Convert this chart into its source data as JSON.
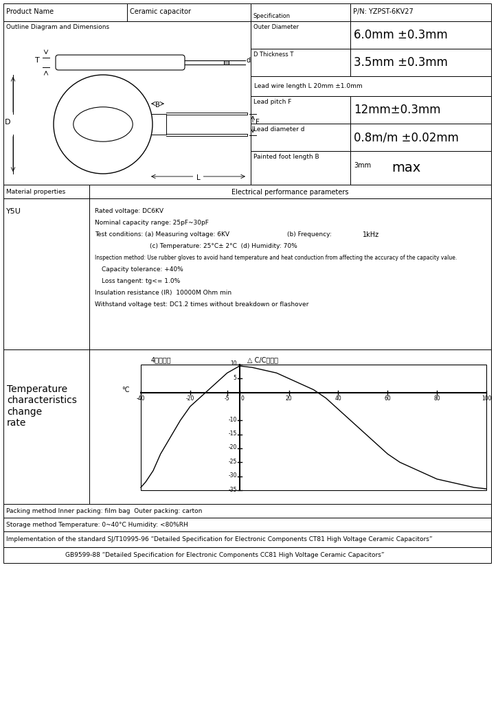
{
  "product_name_label": "Product Name",
  "product_name_val": "Ceramic capacitor",
  "spec_label": "Specification",
  "pn": "P/N: YZPST-6KV27",
  "outline_label": "Outline Diagram and Dimensions",
  "outer_diameter_label": "Outer Diameter",
  "outer_diameter_val": "6.0mm ±0.3mm",
  "thickness_label": "D Thickness T",
  "thickness_val": "3.5mm ±0.3mm",
  "lead_wire_label": "Lead wire length L 20mm ±1.0mm",
  "lead_pitch_label": "Lead pitch F",
  "lead_pitch_val": "12mm±0.3mm",
  "lead_dia_label": "Lead diameter d",
  "lead_dia_val": "0.8m/m ±0.02mm",
  "painted_label": "Painted foot length B",
  "painted_val1": "3mm",
  "painted_val2": "max",
  "material_label": "Material properties",
  "electrical_label": "Electrical performance parameters",
  "material_val": "Y5U",
  "temp_char_num": "4",
  "temp_char_label": "温度特性",
  "delta_cc_label": "△ C/C（％）",
  "celsius_label": "°C",
  "temp_char_title_left": "Temperature\ncharacteristics\nchange\nrate",
  "packing_label": "Packing method Inner packing: film bag  Outer packing: carton",
  "storage_label": "Storage method Temperature: 0~40°C Humidity: <80%RH",
  "impl_label1": "Implementation of the standard SJ/T10995-96 “Detailed Specification for Electronic Components CT81 High Voltage Ceramic Capacitors”",
  "impl_label2": "GB9599-88 “Detailed Specification for Electronic Components CC81 High Voltage Ceramic Capacitors”",
  "bg_color": "#ffffff"
}
